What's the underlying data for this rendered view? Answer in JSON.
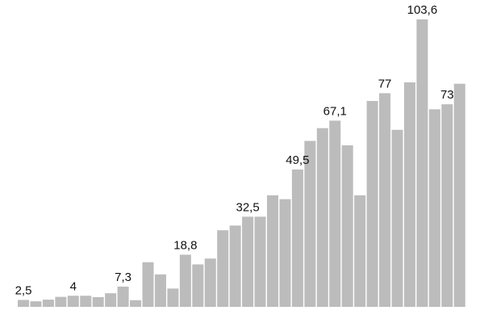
{
  "chart_data": {
    "type": "bar",
    "title": "",
    "xlabel": "",
    "ylabel": "",
    "ylim": [
      0,
      105
    ],
    "grid": false,
    "legend": "none",
    "bar_color": "#bcbcbc",
    "values": [
      2.5,
      2.0,
      2.6,
      3.6,
      4.0,
      4.0,
      3.5,
      4.9,
      7.3,
      2.4,
      16.1,
      11.7,
      6.6,
      18.8,
      15.3,
      17.4,
      27.6,
      29.3,
      32.5,
      32.5,
      40.2,
      38.8,
      49.5,
      59.8,
      64.4,
      67.1,
      58.2,
      40.2,
      74.2,
      77.0,
      63.8,
      80.9,
      103.6,
      71.2,
      73.0,
      80.4
    ],
    "value_labels": [
      {
        "index": 0,
        "text": "2,5"
      },
      {
        "index": 4,
        "text": "4"
      },
      {
        "index": 8,
        "text": "7,3"
      },
      {
        "index": 13,
        "text": "18,8"
      },
      {
        "index": 18,
        "text": "32,5"
      },
      {
        "index": 22,
        "text": "49,5"
      },
      {
        "index": 25,
        "text": "67,1"
      },
      {
        "index": 29,
        "text": "77"
      },
      {
        "index": 32,
        "text": "103,6"
      },
      {
        "index": 34,
        "text": "73"
      }
    ]
  }
}
